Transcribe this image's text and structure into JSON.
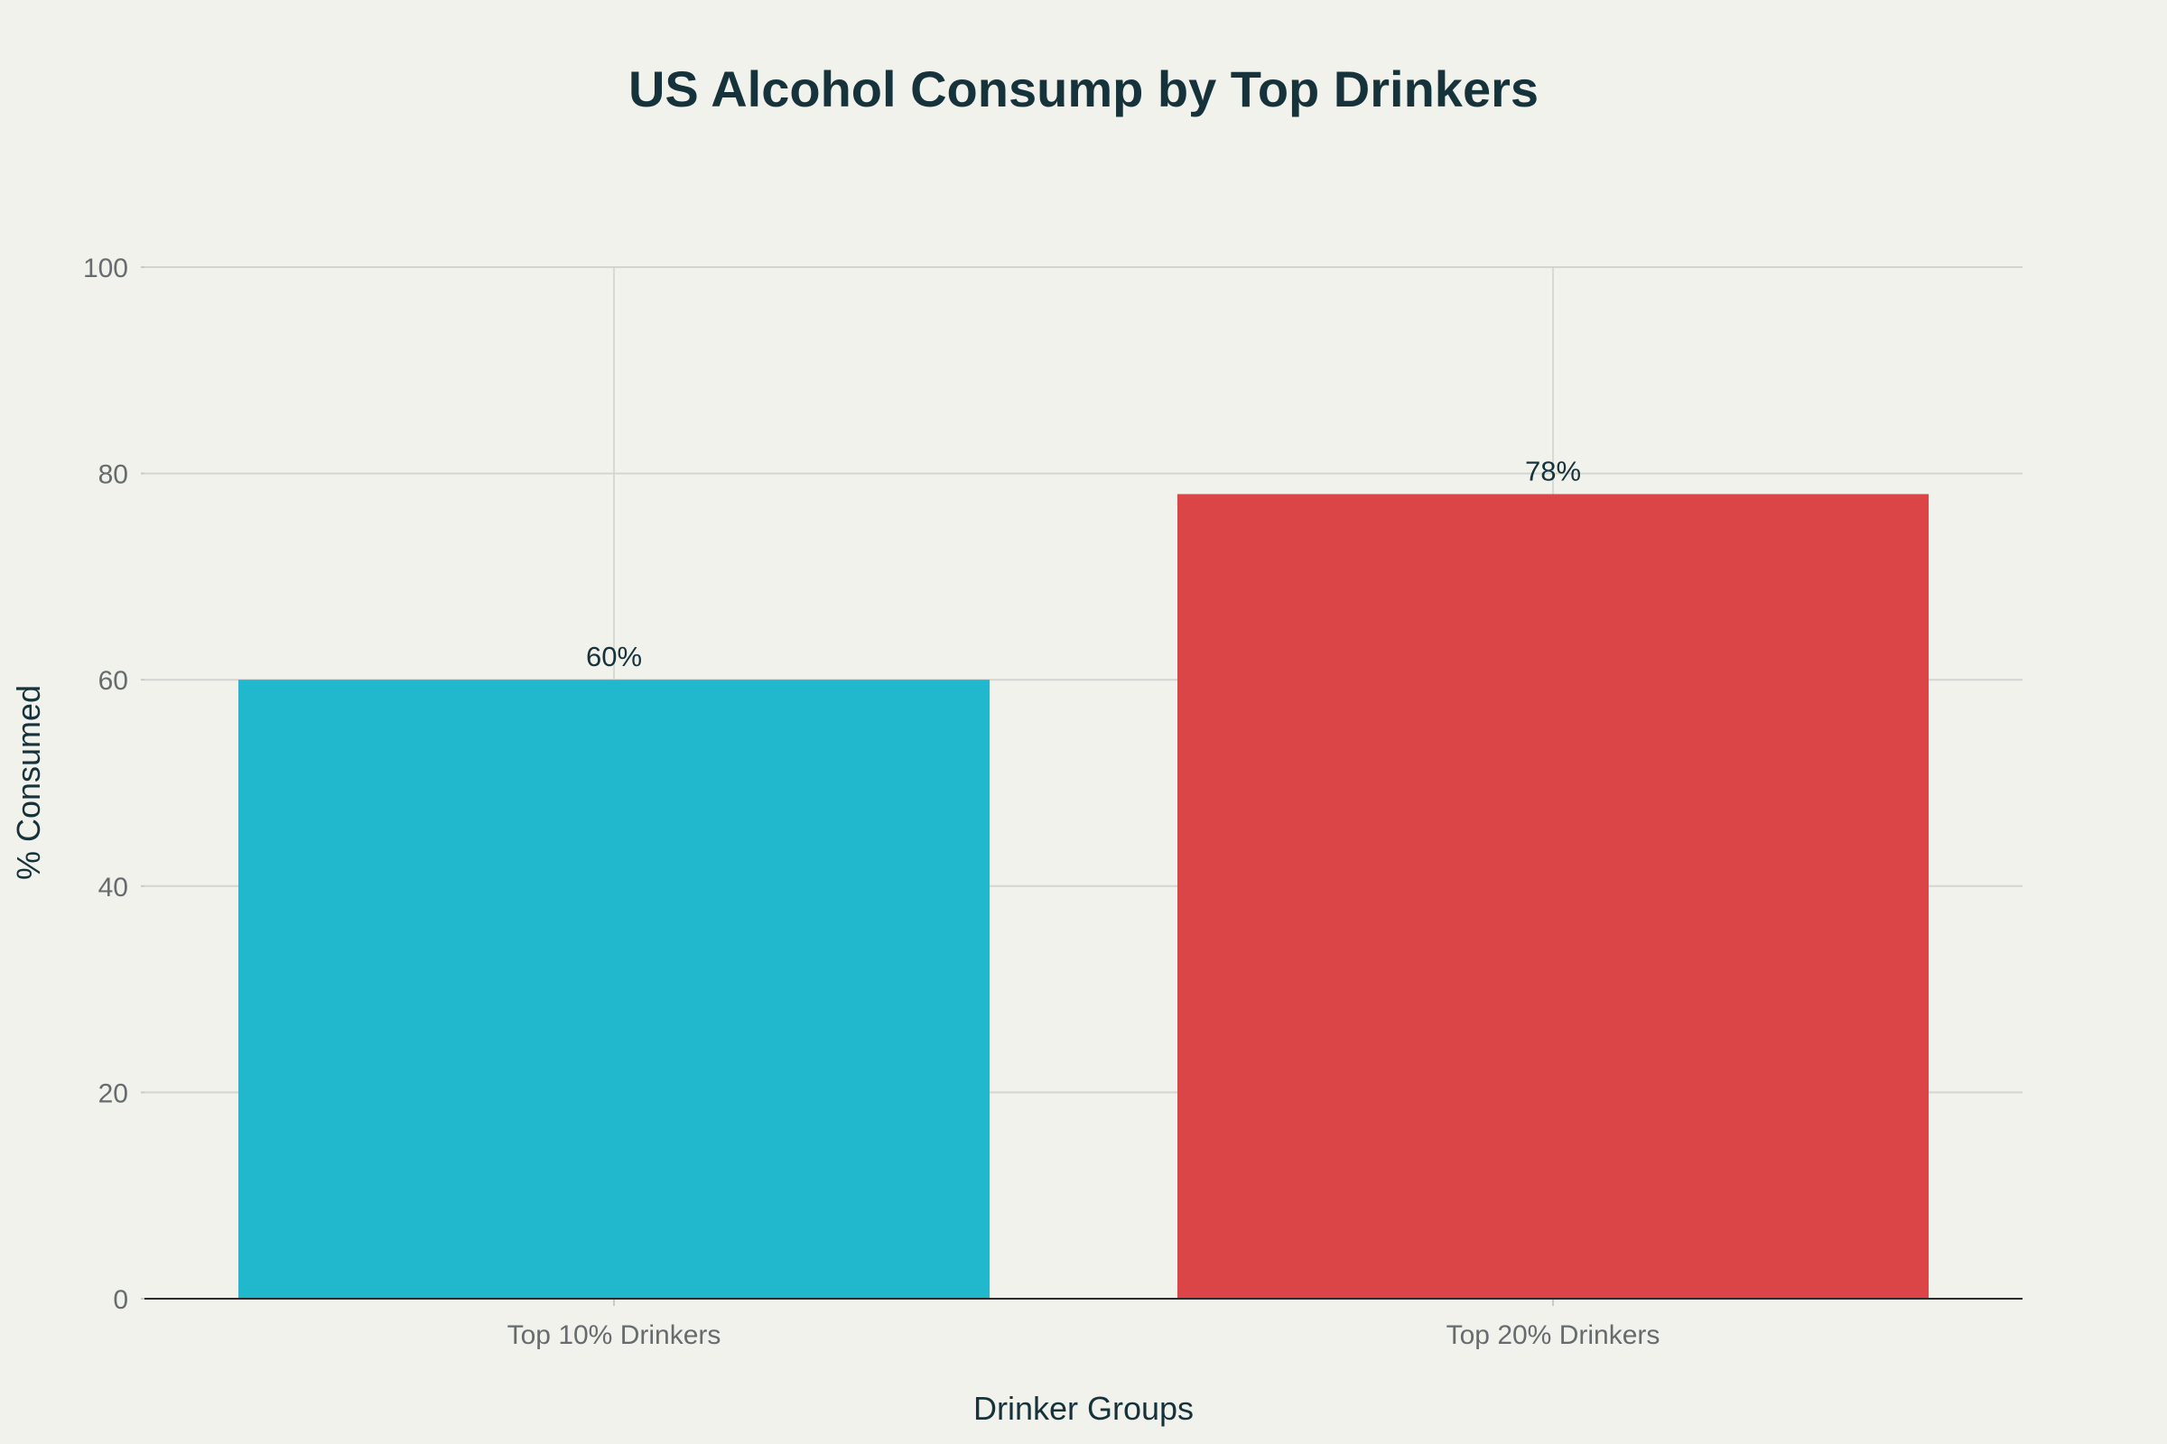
{
  "chart_data": {
    "type": "bar",
    "title": "US Alcohol Consump by Top Drinkers",
    "xlabel": "Drinker Groups",
    "ylabel": "% Consumed",
    "categories": [
      "Top 10% Drinkers",
      "Top 20% Drinkers"
    ],
    "values": [
      60,
      78
    ],
    "data_labels": [
      "60%",
      "78%"
    ],
    "colors": [
      "#21b7cc",
      "#db4548"
    ],
    "ylim": [
      0,
      100
    ],
    "yticks": [
      0,
      20,
      40,
      60,
      80,
      100
    ],
    "ytick_labels": [
      "0",
      "20",
      "40",
      "60",
      "80",
      "100"
    ],
    "grid": true,
    "legend": "none"
  }
}
